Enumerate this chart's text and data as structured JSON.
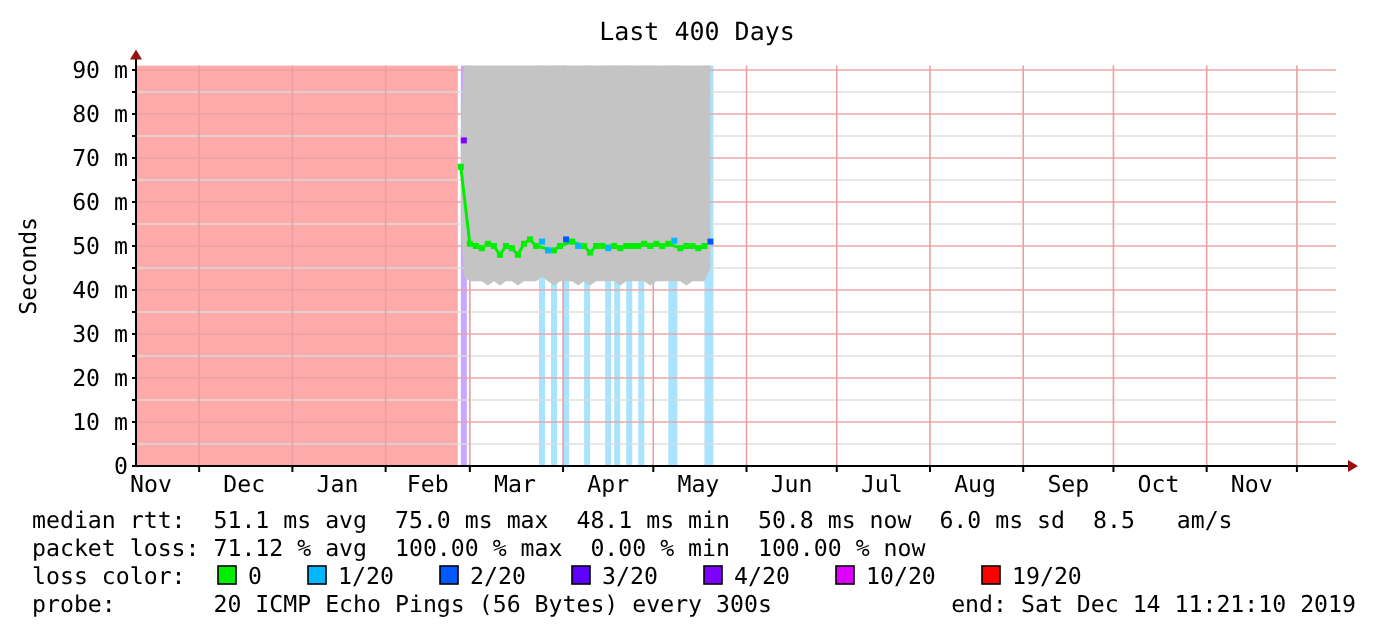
{
  "chart_data": {
    "type": "line",
    "title": "Last 400 Days",
    "ylabel": "Seconds",
    "legend_title": "loss color:",
    "legend": "bottom",
    "grid": true,
    "marker": "square",
    "line_style": "solid",
    "xlim": [
      "2018-11-10",
      "2019-12-14"
    ],
    "xticks": [
      {
        "value": "2018-11-15",
        "label": "Nov"
      },
      {
        "value": "2018-12-01",
        "label": null
      },
      {
        "value": "2018-12-16",
        "label": "Dec"
      },
      {
        "value": "2019-01-01",
        "label": null
      },
      {
        "value": "2019-01-16",
        "label": "Jan"
      },
      {
        "value": "2019-02-01",
        "label": null
      },
      {
        "value": "2019-02-15",
        "label": "Feb"
      },
      {
        "value": "2019-03-01",
        "label": null
      },
      {
        "value": "2019-03-16",
        "label": "Mar"
      },
      {
        "value": "2019-04-01",
        "label": null
      },
      {
        "value": "2019-04-16",
        "label": "Apr"
      },
      {
        "value": "2019-05-01",
        "label": null
      },
      {
        "value": "2019-05-16",
        "label": "May"
      },
      {
        "value": "2019-06-01",
        "label": null
      },
      {
        "value": "2019-06-16",
        "label": "Jun"
      },
      {
        "value": "2019-07-01",
        "label": null
      },
      {
        "value": "2019-07-16",
        "label": "Jul"
      },
      {
        "value": "2019-08-01",
        "label": null
      },
      {
        "value": "2019-08-16",
        "label": "Aug"
      },
      {
        "value": "2019-09-01",
        "label": null
      },
      {
        "value": "2019-09-16",
        "label": "Sep"
      },
      {
        "value": "2019-10-01",
        "label": null
      },
      {
        "value": "2019-10-16",
        "label": "Oct"
      },
      {
        "value": "2019-11-01",
        "label": null
      },
      {
        "value": "2019-11-16",
        "label": "Nov"
      },
      {
        "value": "2019-12-01",
        "label": null
      }
    ],
    "ylim": [
      0,
      91
    ],
    "yticks": [
      0,
      {
        "value": 5,
        "label": null
      },
      {
        "value": 10,
        "label": "10 m"
      },
      {
        "value": 15,
        "label": null
      },
      {
        "value": 20,
        "label": "20 m"
      },
      {
        "value": 25,
        "label": null
      },
      {
        "value": 30,
        "label": "30 m"
      },
      {
        "value": 35,
        "label": null
      },
      {
        "value": 40,
        "label": "40 m"
      },
      {
        "value": 45,
        "label": null
      },
      {
        "value": 50,
        "label": "50 m"
      },
      {
        "value": 55,
        "label": null
      },
      {
        "value": 60,
        "label": "60 m"
      },
      {
        "value": 65,
        "label": null
      },
      {
        "value": 70,
        "label": "70 m"
      },
      {
        "value": 75,
        "label": null
      },
      {
        "value": 80,
        "label": "80 m"
      },
      {
        "value": 85,
        "label": null
      },
      {
        "value": 90,
        "label": "90 m"
      }
    ],
    "bands": [
      {
        "axis": "x",
        "from": "2018-11-10",
        "to": "2019-02-25",
        "color": "#ffaaaa"
      },
      {
        "axis": "x",
        "from": "2019-02-26",
        "to": "2019-02-28",
        "color": "#c8a8ff"
      },
      {
        "axis": "x",
        "from": "2019-03-24",
        "to": "2019-03-26",
        "color": "#a8e4ff"
      },
      {
        "axis": "x",
        "from": "2019-03-28",
        "to": "2019-03-30",
        "color": "#a8e4ff"
      },
      {
        "axis": "x",
        "from": "2019-04-01",
        "to": "2019-04-03",
        "color": "#a8e4ff"
      },
      {
        "axis": "x",
        "from": "2019-04-08",
        "to": "2019-04-10",
        "color": "#a8e4ff"
      },
      {
        "axis": "x",
        "from": "2019-04-15",
        "to": "2019-04-17",
        "color": "#a8e4ff"
      },
      {
        "axis": "x",
        "from": "2019-04-18",
        "to": "2019-04-20",
        "color": "#a8e4ff"
      },
      {
        "axis": "x",
        "from": "2019-04-22",
        "to": "2019-04-24",
        "color": "#a8e4ff"
      },
      {
        "axis": "x",
        "from": "2019-04-26",
        "to": "2019-04-28",
        "color": "#a8e4ff"
      },
      {
        "axis": "x",
        "from": "2019-05-06",
        "to": "2019-05-09",
        "color": "#a8e4ff"
      },
      {
        "axis": "x",
        "from": "2019-05-18",
        "to": "2019-05-21",
        "color": "#a8e4ff"
      }
    ],
    "series": [
      {
        "name": "0",
        "color": "#00ee00",
        "x": [
          "2019-02-26",
          "2019-02-27",
          "2019-03-01",
          "2019-03-03",
          "2019-03-05",
          "2019-03-07",
          "2019-03-09",
          "2019-03-11",
          "2019-03-13",
          "2019-03-15",
          "2019-03-17",
          "2019-03-19",
          "2019-03-21",
          "2019-03-23",
          "2019-03-25",
          "2019-03-27",
          "2019-03-29",
          "2019-03-31",
          "2019-04-02",
          "2019-04-04",
          "2019-04-06",
          "2019-04-08",
          "2019-04-10",
          "2019-04-12",
          "2019-04-14",
          "2019-04-16",
          "2019-04-18",
          "2019-04-20",
          "2019-04-22",
          "2019-04-24",
          "2019-04-26",
          "2019-04-28",
          "2019-04-30",
          "2019-05-02",
          "2019-05-04",
          "2019-05-06",
          "2019-05-08",
          "2019-05-10",
          "2019-05-12",
          "2019-05-14",
          "2019-05-16",
          "2019-05-18",
          "2019-05-20"
        ],
        "values": [
          68,
          null,
          50.5,
          50,
          49.5,
          50.5,
          50,
          48,
          50,
          49.5,
          48,
          50.5,
          51.5,
          50,
          null,
          null,
          49,
          50,
          null,
          51,
          null,
          50,
          48.5,
          50,
          50,
          null,
          50,
          49.5,
          50,
          50,
          50,
          50.5,
          50,
          50.5,
          50,
          50.5,
          null,
          49.5,
          50,
          50,
          49.5,
          50,
          null
        ],
        "lower": [
          56,
          43,
          42,
          42,
          42,
          41,
          42,
          41,
          42,
          42,
          41,
          42,
          42,
          42,
          43,
          42,
          41,
          42,
          42,
          42,
          41,
          42,
          41,
          42,
          42,
          42,
          42,
          41,
          42,
          42,
          42,
          42,
          41,
          42,
          42,
          42,
          42,
          42,
          41,
          42,
          42,
          42,
          45
        ],
        "upper": [
          76,
          91,
          91,
          91,
          91,
          91,
          91,
          91,
          91,
          91,
          91,
          91,
          91,
          91,
          91,
          91,
          91,
          91,
          91,
          91,
          91,
          91,
          91,
          91,
          91,
          91,
          91,
          91,
          91,
          91,
          91,
          91,
          91,
          91,
          91,
          91,
          91,
          91,
          91,
          91,
          91,
          91,
          91
        ]
      },
      {
        "name": "1/20",
        "type": "scatter",
        "color": "#00b8ff",
        "x": [
          "2019-03-25",
          "2019-03-27",
          "2019-04-06",
          "2019-04-16",
          "2019-05-08"
        ],
        "values": [
          51,
          49,
          50,
          49.5,
          51.2
        ]
      },
      {
        "name": "2/20",
        "type": "scatter",
        "color": "#0059ff",
        "x": [
          "2019-04-02",
          "2019-05-20"
        ],
        "values": [
          51.5,
          51
        ]
      },
      {
        "name": "3/20",
        "type": "scatter",
        "color": "#5e00ff"
      },
      {
        "name": "4/20",
        "type": "scatter",
        "color": "#7e00ff",
        "x": [
          "2019-02-27"
        ],
        "values": [
          74
        ]
      },
      {
        "name": "10/20",
        "type": "scatter",
        "color": "#dd00ff"
      },
      {
        "name": "19/20",
        "type": "scatter",
        "color": "#ff0000"
      }
    ],
    "annotations": [
      "median rtt:  51.1 ms avg  75.0 ms max  48.1 ms min  50.8 ms now  6.0 ms sd  8.5   am/s",
      "packet loss: 71.12 % avg  100.00 % max  0.00 % min  100.00 % now",
      "probe:       20 ICMP Echo Pings (56 Bytes) every 300s",
      "end: Sat Dec 14 11:21:10 2019"
    ]
  }
}
